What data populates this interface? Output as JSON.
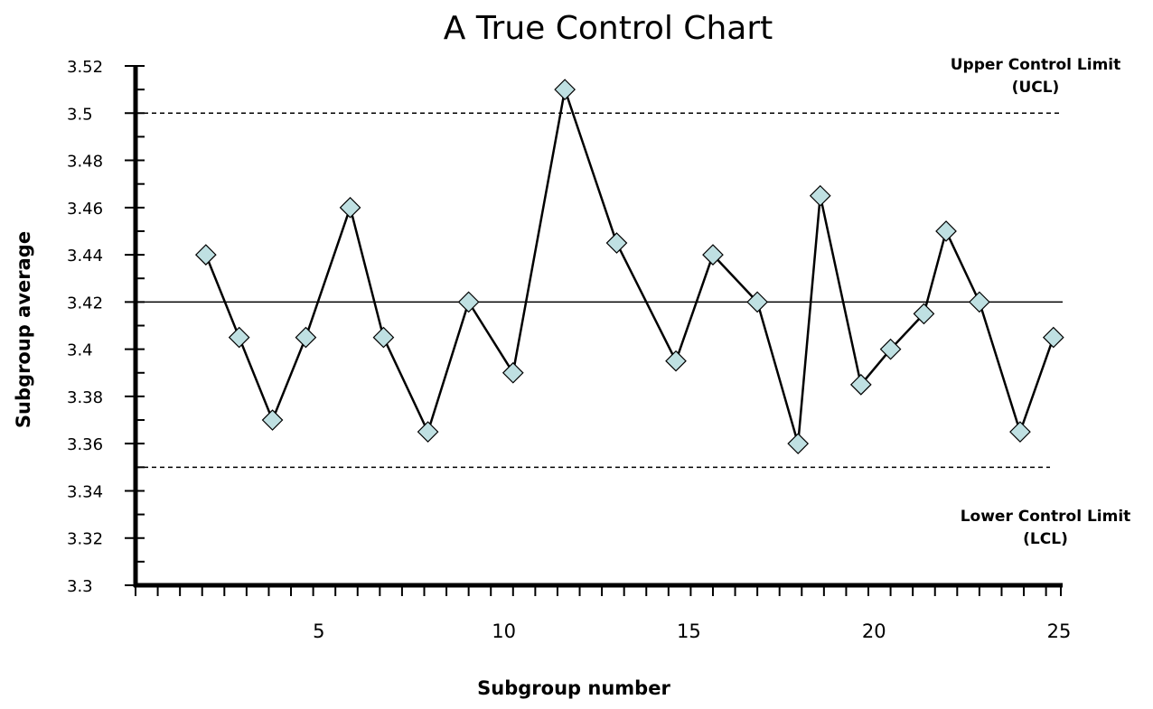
{
  "chart_data": {
    "type": "line",
    "title": "A True Control Chart",
    "xlabel": "Subgroup number",
    "ylabel": "Subgroup average",
    "xlim": [
      1,
      25
    ],
    "ylim": [
      3.3,
      3.52
    ],
    "x_ticks": [
      "5",
      "10",
      "15",
      "20",
      "25"
    ],
    "x_tick_values": [
      5,
      10,
      15,
      20,
      25
    ],
    "y_ticks": [
      "3.3",
      "3.32",
      "3.34",
      "3.36",
      "3.38",
      "3.4",
      "3.42",
      "3.44",
      "3.46",
      "3.48",
      "3.5",
      "3.52"
    ],
    "y_tick_values": [
      3.3,
      3.32,
      3.34,
      3.36,
      3.38,
      3.4,
      3.42,
      3.44,
      3.46,
      3.48,
      3.5,
      3.52
    ],
    "grid": false,
    "series": [
      {
        "marker": "diamond",
        "marker_color": "#bfe0e2",
        "line_color": "#000000",
        "x": [
          1.9,
          2.8,
          3.7,
          4.6,
          5.8,
          6.7,
          7.9,
          9.0,
          10.2,
          11.6,
          13.0,
          14.6,
          15.6,
          16.8,
          17.9,
          18.5,
          19.6,
          20.4,
          21.3,
          21.9,
          22.8,
          23.9,
          24.8
        ],
        "y": [
          3.44,
          3.405,
          3.37,
          3.405,
          3.46,
          3.405,
          3.365,
          3.42,
          3.39,
          3.51,
          3.445,
          3.395,
          3.44,
          3.42,
          3.36,
          3.465,
          3.385,
          3.4,
          3.415,
          3.45,
          3.42,
          3.365,
          3.405
        ]
      }
    ],
    "reference_lines": [
      {
        "value": 3.5,
        "style": "dashed",
        "label": "Upper Control Limit",
        "label2": "(UCL)"
      },
      {
        "value": 3.42,
        "style": "solid",
        "label": "",
        "label2": ""
      },
      {
        "value": 3.35,
        "style": "dashed",
        "label": "Lower Control Limit",
        "label2": "(LCL)"
      }
    ]
  }
}
